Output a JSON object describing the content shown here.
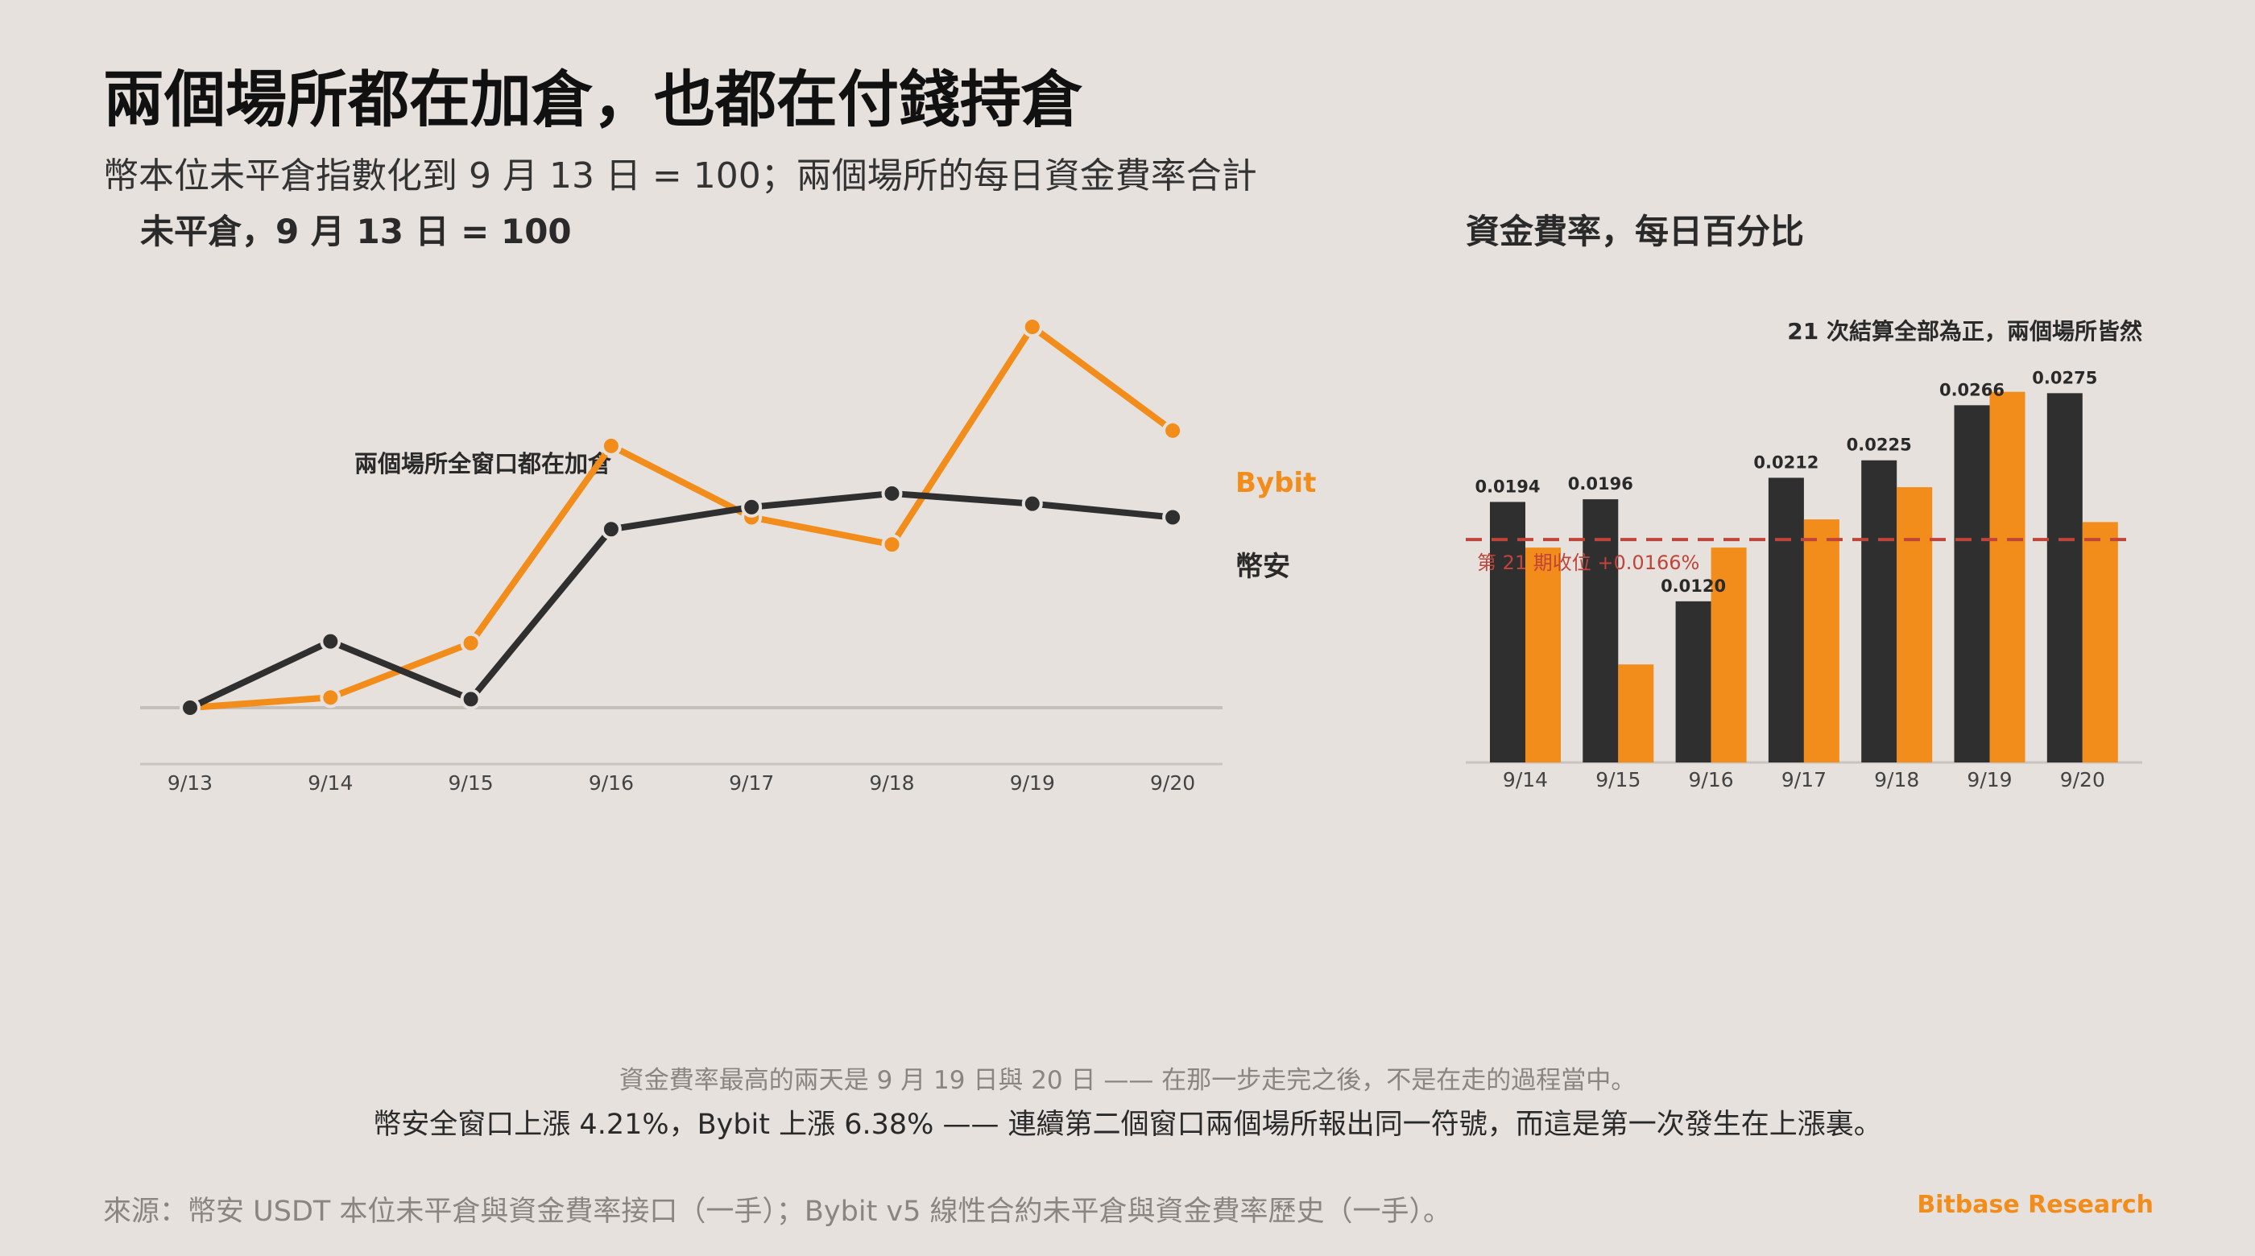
{
  "title": "兩個場所都在加倉，也都在付錢持倉",
  "subtitle": "幣本位未平倉指數化到 9 月 13 日 = 100；兩個場所的每日資金費率合計",
  "colors": {
    "bybit": "#f28c1a",
    "binance": "#2f2f2f",
    "reference": "#c0443a",
    "background": "#e6e1dc"
  },
  "footer": {
    "note1": "資金費率最高的兩天是 9 月 19 日與 20 日 —— 在那一步走完之後，不是在走的過程當中。",
    "note2": "幣安全窗口上漲 4.21%，Bybit 上漲 6.38% —— 連續第二個窗口兩個場所報出同一符號，而這是第一次發生在上漲裏。",
    "source": "來源：幣安 USDT 本位未平倉與資金費率接口（一手）；Bybit v5 線性合約未平倉與資金費率歷史（一手）。",
    "brand": "Bitbase Research"
  },
  "chart_data": [
    {
      "type": "line",
      "title": "未平倉，9 月 13 日 = 100",
      "x": [
        "9/13",
        "9/14",
        "9/15",
        "9/16",
        "9/17",
        "9/18",
        "9/19",
        "9/20"
      ],
      "series": [
        {
          "name": "Bybit",
          "values": [
            100.0,
            100.6,
            103.8,
            115.4,
            111.2,
            109.6,
            122.4,
            116.3
          ]
        },
        {
          "name": "幣安",
          "values": [
            100.0,
            103.9,
            100.5,
            110.5,
            111.8,
            112.6,
            112.0,
            111.2
          ]
        }
      ],
      "annotation": "兩個場所全窗口都在加倉",
      "baseline": 100,
      "ylim": [
        96.4,
        126
      ],
      "grid": false
    },
    {
      "type": "bar",
      "title": "資金費率，每日百分比",
      "subtitle": "21 次結算全部為正，兩個場所皆然",
      "categories": [
        "9/14",
        "9/15",
        "9/16",
        "9/17",
        "9/18",
        "9/19",
        "9/20"
      ],
      "series": [
        {
          "name": "幣安",
          "values": [
            0.0194,
            0.0196,
            0.012,
            0.0212,
            0.0225,
            0.0266,
            0.0275
          ],
          "labels": [
            "0.0194",
            "0.0196",
            "0.0120",
            "0.0212",
            "0.0225",
            "0.0266",
            "0.0275"
          ]
        },
        {
          "name": "Bybit",
          "values": [
            0.016,
            0.0073,
            0.016,
            0.0181,
            0.0205,
            0.0276,
            0.0179
          ]
        }
      ],
      "reference": {
        "value": 0.0166,
        "label": "第 21 期收位 +0.0166%"
      },
      "ylim": [
        0,
        0.028
      ],
      "grid": false
    }
  ]
}
